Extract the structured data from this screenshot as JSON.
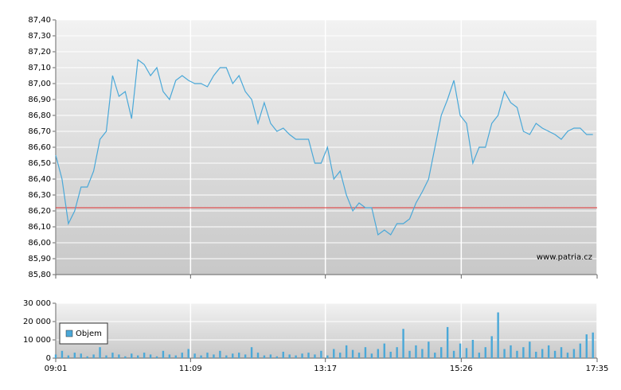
{
  "chart_data": [
    {
      "type": "line",
      "xlim": [
        541,
        1055
      ],
      "ylim": [
        85.8,
        87.4
      ],
      "yticks": [
        {
          "value": 85.8,
          "label": "85,80"
        },
        {
          "value": 85.9,
          "label": "85,90"
        },
        {
          "value": 86.0,
          "label": "86,00"
        },
        {
          "value": 86.1,
          "label": "86,10"
        },
        {
          "value": 86.2,
          "label": "86,20"
        },
        {
          "value": 86.3,
          "label": "86,30"
        },
        {
          "value": 86.4,
          "label": "86,40"
        },
        {
          "value": 86.5,
          "label": "86,50"
        },
        {
          "value": 86.6,
          "label": "86,60"
        },
        {
          "value": 86.7,
          "label": "86,70"
        },
        {
          "value": 86.8,
          "label": "86,80"
        },
        {
          "value": 86.9,
          "label": "86,90"
        },
        {
          "value": 87.0,
          "label": "87,00"
        },
        {
          "value": 87.1,
          "label": "87,10"
        },
        {
          "value": 87.2,
          "label": "87,20"
        },
        {
          "value": 87.3,
          "label": "87,30"
        },
        {
          "value": 87.4,
          "label": "87,40"
        }
      ],
      "grid": true,
      "reference_line": {
        "value": 86.22,
        "color": "#e03030"
      },
      "watermark": "www.patria.cz",
      "x": [
        541,
        547,
        553,
        559,
        565,
        571,
        577,
        583,
        589,
        595,
        601,
        607,
        613,
        619,
        625,
        631,
        637,
        643,
        649,
        655,
        661,
        667,
        673,
        679,
        685,
        691,
        697,
        703,
        709,
        715,
        721,
        727,
        733,
        739,
        745,
        751,
        757,
        763,
        769,
        775,
        781,
        787,
        793,
        799,
        805,
        811,
        817,
        823,
        829,
        835,
        841,
        847,
        853,
        859,
        865,
        871,
        877,
        883,
        889,
        895,
        901,
        907,
        913,
        919,
        925,
        931,
        937,
        943,
        949,
        955,
        961,
        967,
        973,
        979,
        985,
        991,
        997,
        1003,
        1009,
        1015,
        1021,
        1027,
        1033,
        1039,
        1045,
        1051
      ],
      "series": [
        {
          "color": "#4aa8d8",
          "values": [
            86.55,
            86.4,
            86.12,
            86.2,
            86.35,
            86.35,
            86.45,
            86.65,
            86.7,
            87.05,
            86.92,
            86.95,
            86.78,
            87.15,
            87.12,
            87.05,
            87.1,
            86.95,
            86.9,
            87.02,
            87.05,
            87.02,
            87.0,
            87.0,
            86.98,
            87.05,
            87.1,
            87.1,
            87.0,
            87.05,
            86.95,
            86.9,
            86.75,
            86.88,
            86.75,
            86.7,
            86.72,
            86.68,
            86.65,
            86.65,
            86.65,
            86.5,
            86.5,
            86.6,
            86.4,
            86.45,
            86.3,
            86.2,
            86.25,
            86.22,
            86.22,
            86.05,
            86.08,
            86.05,
            86.12,
            86.12,
            86.15,
            86.25,
            86.32,
            86.4,
            86.6,
            86.8,
            86.9,
            87.02,
            86.8,
            86.75,
            86.5,
            86.6,
            86.6,
            86.75,
            86.8,
            86.95,
            86.88,
            86.85,
            86.7,
            86.68,
            86.75,
            86.72,
            86.7,
            86.68,
            86.65,
            86.7,
            86.72,
            86.72,
            86.68,
            86.68
          ]
        }
      ]
    },
    {
      "type": "bar",
      "xlim": [
        541,
        1055
      ],
      "xticks": [
        {
          "value": 541,
          "label": "09:01"
        },
        {
          "value": 669,
          "label": "11:09"
        },
        {
          "value": 797,
          "label": "13:17"
        },
        {
          "value": 926,
          "label": "15:26"
        },
        {
          "value": 1055,
          "label": "17:35"
        }
      ],
      "ylim": [
        0,
        30000
      ],
      "yticks": [
        0,
        {
          "value": 10000,
          "label": "10 000"
        },
        {
          "value": 20000,
          "label": "20 000"
        },
        {
          "value": 30000,
          "label": "30 000"
        }
      ],
      "grid": true,
      "legend": "lower-left",
      "x": [
        541,
        547,
        553,
        559,
        565,
        571,
        577,
        583,
        589,
        595,
        601,
        607,
        613,
        619,
        625,
        631,
        637,
        643,
        649,
        655,
        661,
        667,
        673,
        679,
        685,
        691,
        697,
        703,
        709,
        715,
        721,
        727,
        733,
        739,
        745,
        751,
        757,
        763,
        769,
        775,
        781,
        787,
        793,
        799,
        805,
        811,
        817,
        823,
        829,
        835,
        841,
        847,
        853,
        859,
        865,
        871,
        877,
        883,
        889,
        895,
        901,
        907,
        913,
        919,
        925,
        931,
        937,
        943,
        949,
        955,
        961,
        967,
        973,
        979,
        985,
        991,
        997,
        1003,
        1009,
        1015,
        1021,
        1027,
        1033,
        1039,
        1045,
        1051
      ],
      "series": [
        {
          "name": "Objem",
          "color": "#4aa8d8",
          "values": [
            2000,
            4000,
            1500,
            3000,
            2500,
            1000,
            2000,
            6000,
            1500,
            3000,
            2000,
            1000,
            2500,
            1500,
            3000,
            2000,
            1000,
            4000,
            2000,
            1500,
            3000,
            5000,
            2500,
            1500,
            3000,
            2000,
            4000,
            1500,
            2500,
            3000,
            2000,
            6000,
            3000,
            1500,
            2000,
            1000,
            3500,
            2000,
            1500,
            2500,
            3000,
            2000,
            4000,
            1500,
            5000,
            3000,
            7000,
            4500,
            3000,
            6000,
            2500,
            5000,
            8000,
            3500,
            6000,
            16000,
            4000,
            7000,
            5000,
            9000,
            3000,
            6000,
            17000,
            4000,
            8000,
            5500,
            10000,
            3000,
            6000,
            12000,
            25000,
            5000,
            7000,
            4000,
            6000,
            9000,
            3500,
            5000,
            7000,
            4000,
            6000,
            3000,
            5000,
            8000,
            13000,
            14000
          ]
        }
      ]
    }
  ]
}
